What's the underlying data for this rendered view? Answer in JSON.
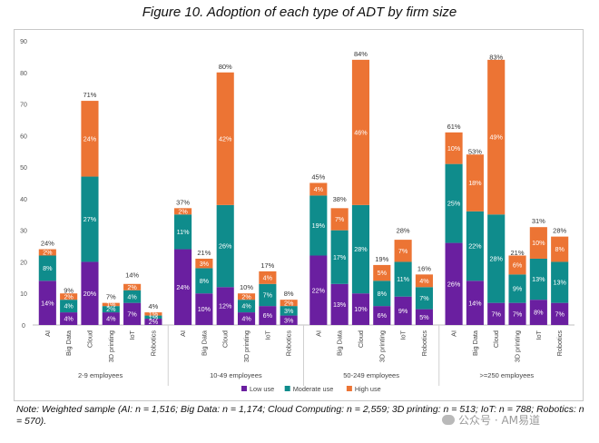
{
  "chart_data": {
    "type": "bar",
    "stacked": true,
    "title": "Figure 10. Adoption of each type of ADT by firm size",
    "xlabel": "",
    "ylabel": "",
    "ylim": [
      0,
      90
    ],
    "yticks": [
      0,
      10,
      20,
      30,
      40,
      50,
      60,
      70,
      80,
      90
    ],
    "grid": false,
    "legend_position": "bottom-right",
    "categories": [
      "AI",
      "Big Data",
      "Cloud",
      "3D printing",
      "IoT",
      "Robotics"
    ],
    "groups": [
      {
        "name": "2-9 employees",
        "totals": [
          24,
          9,
          71,
          7,
          14,
          4
        ],
        "series_values": {
          "Low use": [
            14,
            4,
            20,
            4,
            7,
            2
          ],
          "Moderate use": [
            8,
            4,
            27,
            2,
            4,
            1
          ],
          "High use": [
            2,
            2,
            24,
            1,
            2,
            1
          ]
        },
        "segment_labels": {
          "Low use": [
            "14%",
            "4%",
            "20%",
            "4%",
            "7%",
            "2%"
          ],
          "Moderate use": [
            "8%",
            "4%",
            "27%",
            "2%",
            "4%",
            "1%"
          ],
          "High use": [
            "2%",
            "2%",
            "24%",
            "1%",
            "2%",
            "1%"
          ]
        },
        "total_labels": [
          "24%",
          "9%",
          "71%",
          "7%",
          "14%",
          "4%"
        ]
      },
      {
        "name": "10-49 employees",
        "totals": [
          37,
          21,
          80,
          10,
          17,
          8
        ],
        "series_values": {
          "Low use": [
            24,
            10,
            12,
            4,
            6,
            3
          ],
          "Moderate use": [
            11,
            8,
            26,
            4,
            7,
            3
          ],
          "High use": [
            2,
            3,
            42,
            2,
            4,
            2
          ]
        },
        "segment_labels": {
          "Low use": [
            "24%",
            "10%",
            "12%",
            "4%",
            "6%",
            "3%"
          ],
          "Moderate use": [
            "11%",
            "8%",
            "26%",
            "4%",
            "7%",
            "3%"
          ],
          "High use": [
            "2%",
            "3%",
            "42%",
            "2%",
            "4%",
            "2%"
          ]
        },
        "total_labels": [
          "37%",
          "21%",
          "80%",
          "10%",
          "17%",
          "8%"
        ]
      },
      {
        "name": "50-249 employees",
        "totals": [
          45,
          38,
          84,
          19,
          28,
          16
        ],
        "series_values": {
          "Low use": [
            22,
            13,
            10,
            6,
            9,
            5
          ],
          "Moderate use": [
            19,
            17,
            28,
            8,
            11,
            7
          ],
          "High use": [
            4,
            7,
            46,
            5,
            7,
            4
          ]
        },
        "segment_labels": {
          "Low use": [
            "22%",
            "13%",
            "10%",
            "6%",
            "9%",
            "5%"
          ],
          "Moderate use": [
            "19%",
            "17%",
            "28%",
            "8%",
            "11%",
            "7%"
          ],
          "High use": [
            "4%",
            "7%",
            "46%",
            "5%",
            "7%",
            "4%"
          ]
        },
        "total_labels": [
          "45%",
          "38%",
          "84%",
          "19%",
          "28%",
          "16%"
        ]
      },
      {
        "name": ">=250 employees",
        "totals": [
          61,
          53,
          83,
          21,
          31,
          28
        ],
        "series_values": {
          "Low use": [
            26,
            14,
            7,
            7,
            8,
            7
          ],
          "Moderate use": [
            25,
            22,
            28,
            9,
            13,
            13
          ],
          "High use": [
            10,
            18,
            49,
            6,
            10,
            8
          ]
        },
        "segment_labels": {
          "Low use": [
            "26%",
            "14%",
            "7%",
            "7%",
            "8%",
            "7%"
          ],
          "Moderate use": [
            "25%",
            "22%",
            "28%",
            "9%",
            "13%",
            "13%"
          ],
          "High use": [
            "10%",
            "18%",
            "49%",
            "6%",
            "10%",
            "8%"
          ]
        },
        "total_labels": [
          "61%",
          "53%",
          "83%",
          "21%",
          "31%",
          "28%"
        ]
      }
    ],
    "series": [
      {
        "name": "Low use",
        "color": "#6a1fa0"
      },
      {
        "name": "Moderate use",
        "color": "#0f8c8c"
      },
      {
        "name": "High use",
        "color": "#ec7434"
      }
    ]
  },
  "note": "Note: Weighted sample (AI: n = 1,516; Big Data: n = 1,174; Cloud Computing: n = 2,559; 3D printing: n = 513; IoT: n = 788; Robotics: n = 570).",
  "watermark": "公众号 · AM易道"
}
